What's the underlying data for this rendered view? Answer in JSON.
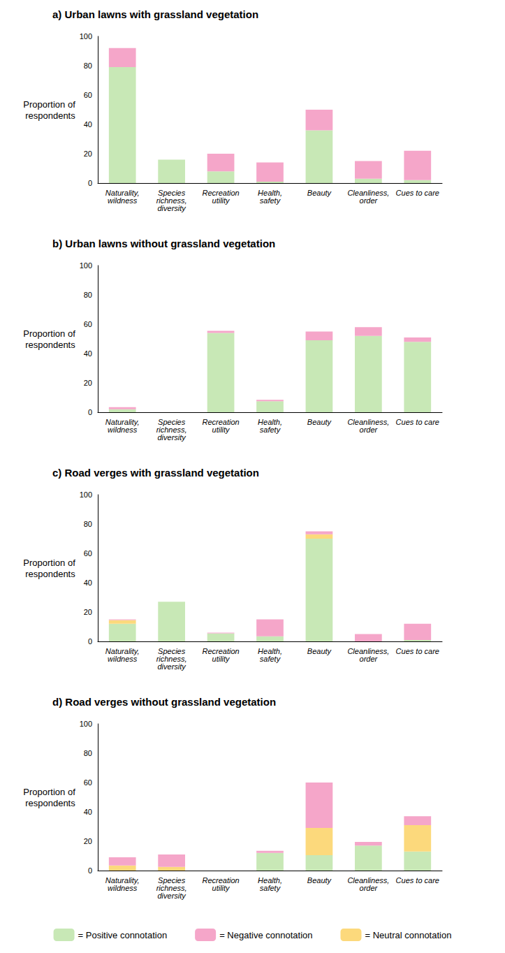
{
  "chart_data": [
    {
      "type": "bar",
      "title": "a) Urban lawns with grassland vegetation",
      "ylabel": "Proportion of respondents",
      "categories": [
        "Naturality, wildness",
        "Species richness, diversity",
        "Recreation utility",
        "Health, safety",
        "Beauty",
        "Cleanliness, order",
        "Cues to care"
      ],
      "series": [
        {
          "name": "= Positive connotation",
          "color": "#c8e8b6",
          "values": [
            79,
            16,
            8,
            1,
            36,
            3,
            2
          ]
        },
        {
          "name": "= Negative connotation",
          "color": "#f5a6c9",
          "values": [
            13,
            0,
            12,
            13,
            14,
            12,
            20
          ]
        }
      ],
      "ylim": [
        0,
        100
      ],
      "yticks": [
        0,
        20,
        40,
        60,
        80,
        100
      ],
      "stacked": true,
      "grid": false,
      "legend": "bottom"
    },
    {
      "type": "bar",
      "title": "b) Urban lawns without grassland vegetation",
      "ylabel": "Proportion of respondents",
      "categories": [
        "Naturality, wildness",
        "Species richness, diversity",
        "Recreation utility",
        "Health, safety",
        "Beauty",
        "Cleanliness, order",
        "Cues to care"
      ],
      "series": [
        {
          "name": "= Positive connotation",
          "color": "#c8e8b6",
          "values": [
            2,
            0,
            54,
            7.5,
            49,
            52,
            48
          ]
        },
        {
          "name": "= Negative connotation",
          "color": "#f5a6c9",
          "values": [
            1.5,
            0,
            1.5,
            1,
            6,
            6,
            3
          ]
        }
      ],
      "ylim": [
        0,
        100
      ],
      "yticks": [
        0,
        20,
        40,
        60,
        80,
        100
      ],
      "stacked": true,
      "grid": false,
      "legend": "bottom"
    },
    {
      "type": "bar",
      "title": "c) Road verges with grassland vegetation",
      "ylabel": "Proportion of respondents",
      "categories": [
        "Naturality, wildness",
        "Species richness, diversity",
        "Recreation utility",
        "Health, safety",
        "Beauty",
        "Cleanliness, order",
        "Cues to care"
      ],
      "series": [
        {
          "name": "= Positive connotation",
          "color": "#c8e8b6",
          "values": [
            12,
            27,
            5.5,
            3.5,
            70,
            0,
            1
          ]
        },
        {
          "name": "= Neutral connotation",
          "color": "#fcd97c",
          "values": [
            2.5,
            0,
            0,
            0,
            3,
            0,
            0
          ]
        },
        {
          "name": "= Negative connotation",
          "color": "#f5a6c9",
          "values": [
            0.5,
            0,
            0.5,
            11.5,
            2,
            5,
            11
          ]
        }
      ],
      "ylim": [
        0,
        100
      ],
      "yticks": [
        0,
        20,
        40,
        60,
        80,
        100
      ],
      "stacked": true,
      "grid": false,
      "legend": "bottom"
    },
    {
      "type": "bar",
      "title": "d) Road verges without grassland vegetation",
      "ylabel": "Proportion of respondents",
      "categories": [
        "Naturality, wildness",
        "Species richness, diversity",
        "Recreation utility",
        "Health, safety",
        "Beauty",
        "Cleanliness, order",
        "Cues to care"
      ],
      "series": [
        {
          "name": "= Positive connotation",
          "color": "#c8e8b6",
          "values": [
            0,
            0,
            0,
            12,
            10.5,
            17,
            13
          ]
        },
        {
          "name": "= Neutral connotation",
          "color": "#fcd97c",
          "values": [
            3.5,
            2.5,
            0,
            0,
            18.5,
            0,
            18
          ]
        },
        {
          "name": "= Negative connotation",
          "color": "#f5a6c9",
          "values": [
            5.5,
            8.5,
            0,
            1.5,
            31,
            2.5,
            6
          ]
        }
      ],
      "ylim": [
        0,
        100
      ],
      "yticks": [
        0,
        20,
        40,
        60,
        80,
        100
      ],
      "stacked": true,
      "grid": false,
      "legend": "bottom"
    }
  ]
}
